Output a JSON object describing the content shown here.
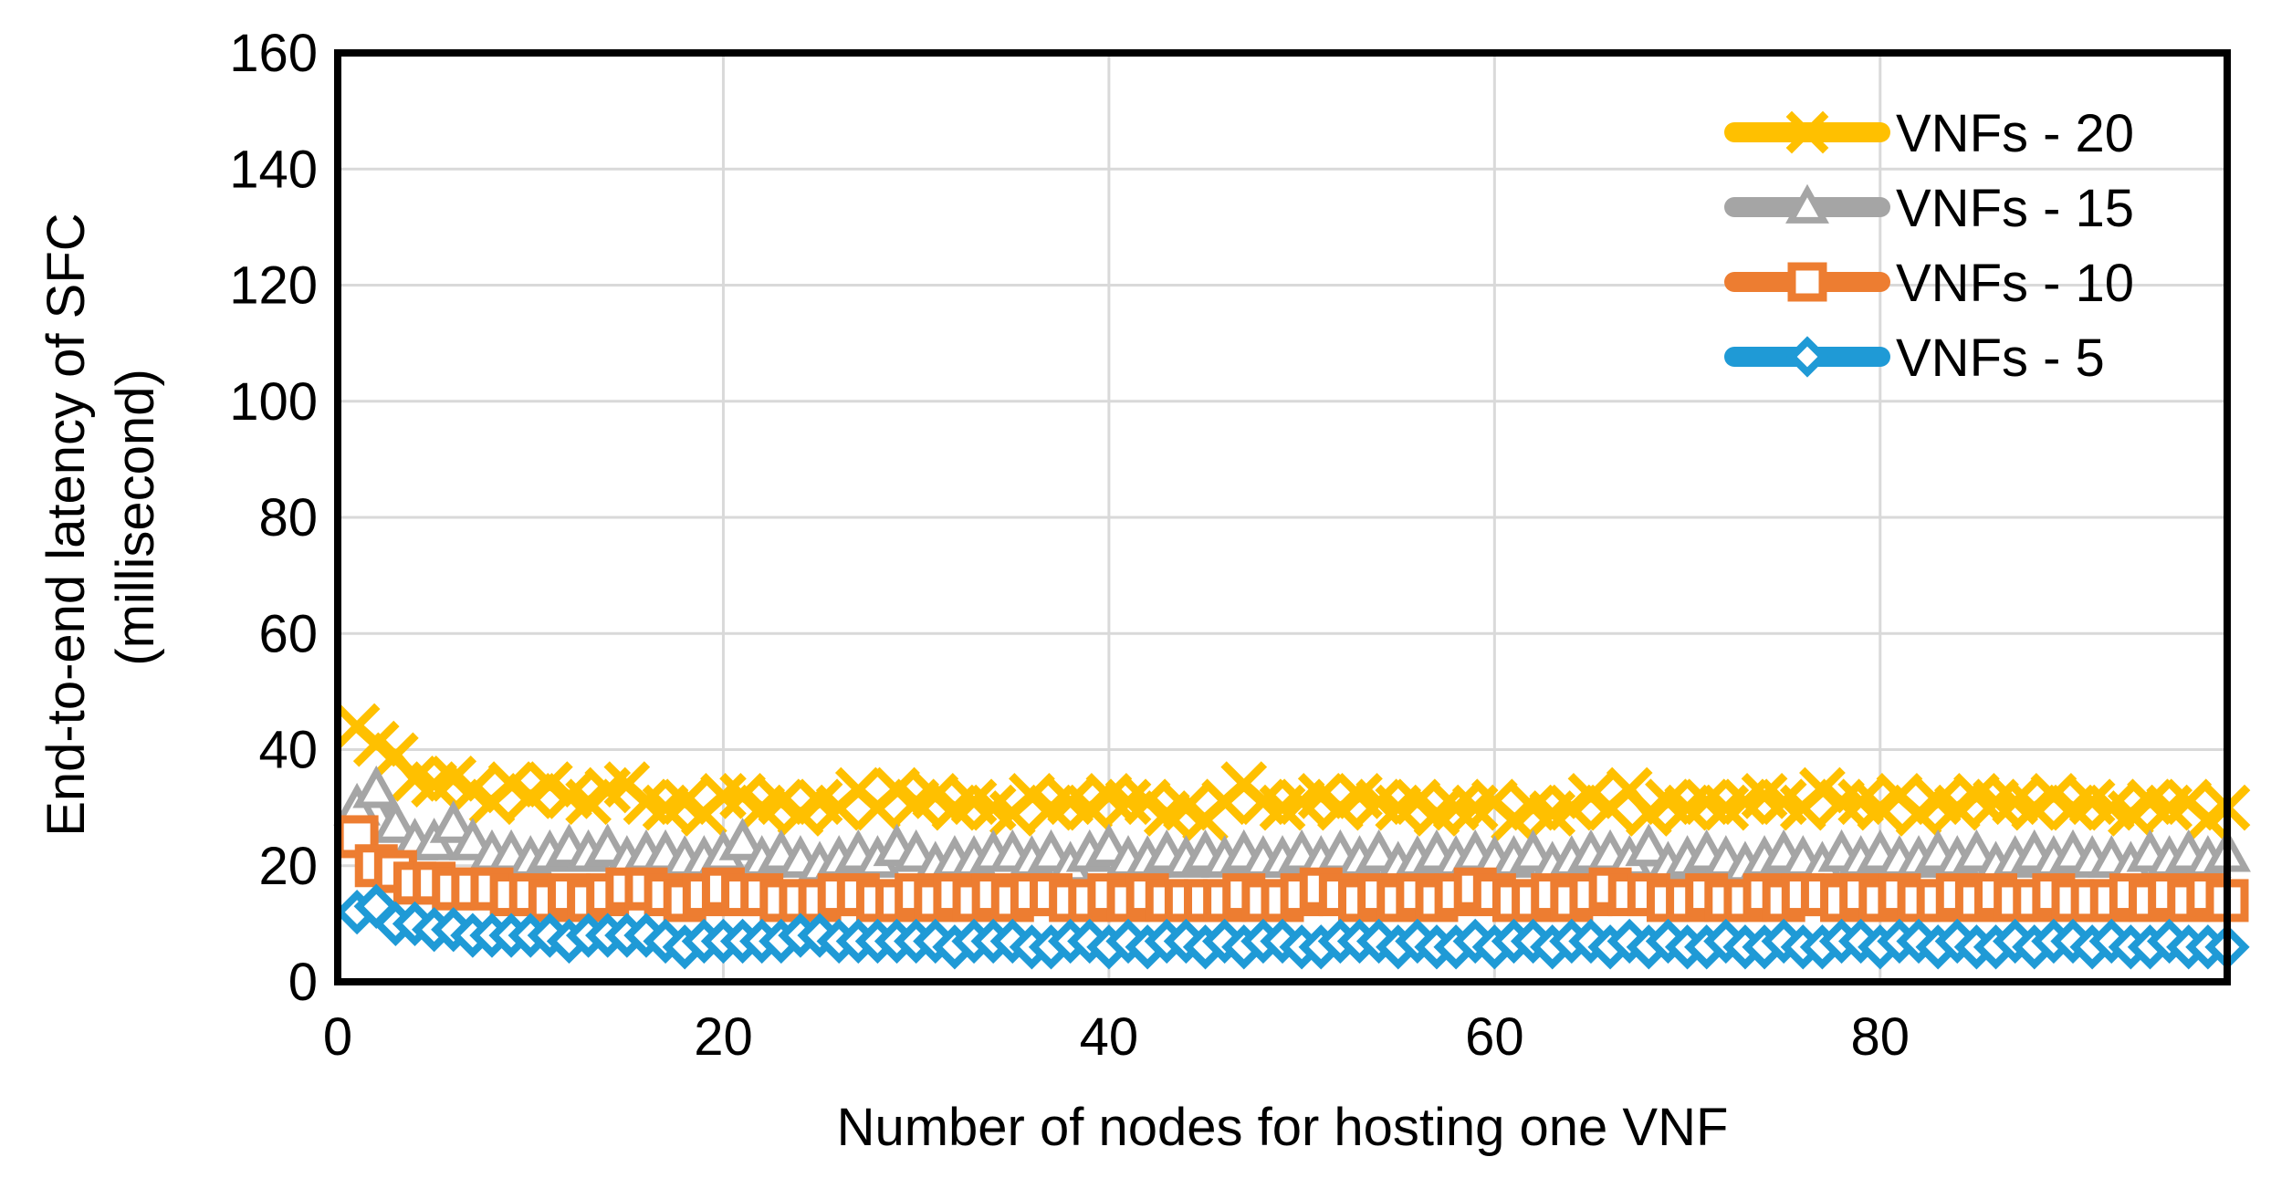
{
  "chart_data": {
    "type": "line",
    "title": "",
    "xlabel": "Number of nodes for hosting one VNF",
    "ylabel_lines": [
      "End-to-end latency of SFC",
      "(millisecond)"
    ],
    "xlim": [
      0,
      98
    ],
    "ylim": [
      0,
      160
    ],
    "x_ticks": [
      0,
      20,
      40,
      60,
      80
    ],
    "y_ticks": [
      0,
      20,
      40,
      60,
      80,
      100,
      120,
      140,
      160
    ],
    "grid": true,
    "legend_position": "top-right",
    "x": [
      1,
      2,
      3,
      4,
      5,
      6,
      7,
      8,
      9,
      10,
      11,
      12,
      13,
      14,
      15,
      16,
      17,
      18,
      19,
      20,
      21,
      22,
      23,
      24,
      25,
      26,
      27,
      28,
      29,
      30,
      31,
      32,
      33,
      34,
      35,
      36,
      37,
      38,
      39,
      40,
      41,
      42,
      43,
      44,
      45,
      46,
      47,
      48,
      49,
      50,
      51,
      52,
      53,
      54,
      55,
      56,
      57,
      58,
      59,
      60,
      61,
      62,
      63,
      64,
      65,
      66,
      67,
      68,
      69,
      70,
      71,
      72,
      73,
      74,
      75,
      76,
      77,
      78,
      79,
      80,
      81,
      82,
      83,
      84,
      85,
      86,
      87,
      88,
      89,
      90,
      91,
      92,
      93,
      94,
      95,
      96,
      97,
      98
    ],
    "series": [
      {
        "name": "VNFs - 20",
        "color": "#FFC000",
        "marker": "x",
        "values": [
          44,
          41,
          39,
          35,
          34,
          35,
          33,
          31,
          34,
          32,
          34,
          32,
          31,
          33,
          34,
          31,
          30,
          31,
          29,
          32,
          32,
          30,
          31,
          29,
          31,
          30,
          33,
          30,
          33,
          31,
          32,
          30,
          31,
          30,
          29,
          32,
          30,
          31,
          30,
          32,
          31,
          31,
          29,
          30,
          28,
          31,
          34,
          31,
          30,
          31,
          32,
          30,
          32,
          31,
          30,
          31,
          29,
          30,
          30,
          31,
          28,
          30,
          29,
          30,
          32,
          30,
          33,
          29,
          31,
          30,
          31,
          30,
          31,
          32,
          31,
          30,
          33,
          31,
          31,
          30,
          32,
          29,
          31,
          30,
          32,
          31,
          31,
          30,
          32,
          30,
          31,
          30,
          29,
          31,
          30,
          31,
          28,
          30
        ]
      },
      {
        "name": "VNFs - 15",
        "color": "#A5A5A5",
        "marker": "triangle",
        "values": [
          30,
          33,
          27,
          24,
          24,
          27,
          24,
          22,
          22,
          21,
          22,
          23,
          22,
          23,
          21,
          22,
          22,
          21,
          21,
          22,
          24,
          21,
          22,
          21,
          20,
          21,
          22,
          21,
          23,
          22,
          20,
          21,
          21,
          22,
          22,
          21,
          22,
          20,
          22,
          23,
          21,
          21,
          22,
          21,
          22,
          21,
          22,
          21,
          21,
          22,
          21,
          22,
          21,
          22,
          20,
          21,
          22,
          21,
          22,
          21,
          21,
          22,
          20,
          21,
          22,
          22,
          21,
          23,
          20,
          21,
          22,
          21,
          20,
          21,
          22,
          21,
          20,
          22,
          21,
          22,
          21,
          21,
          22,
          21,
          22,
          20,
          21,
          22,
          21,
          22,
          21,
          21,
          20,
          22,
          21,
          22,
          21,
          22
        ]
      },
      {
        "name": "VNFs - 10",
        "color": "#ED7D31",
        "marker": "square",
        "values": [
          25,
          20,
          19,
          17,
          17,
          16,
          16,
          16,
          15,
          15,
          14,
          15,
          14,
          15,
          16,
          16,
          15,
          14,
          15,
          16,
          15,
          15,
          14,
          14,
          14,
          15,
          15,
          14,
          14,
          15,
          14,
          15,
          14,
          15,
          14,
          15,
          15,
          14,
          14,
          15,
          14,
          15,
          14,
          14,
          14,
          14,
          15,
          14,
          14,
          15,
          16,
          15,
          14,
          15,
          14,
          15,
          14,
          15,
          16,
          15,
          14,
          14,
          15,
          14,
          15,
          16,
          15,
          15,
          14,
          14,
          15,
          14,
          14,
          15,
          14,
          15,
          15,
          14,
          15,
          14,
          15,
          14,
          14,
          15,
          14,
          15,
          14,
          14,
          15,
          14,
          14,
          14,
          15,
          14,
          15,
          14,
          15,
          14
        ]
      },
      {
        "name": "VNFs - 5",
        "color": "#1F9AD6",
        "marker": "diamond",
        "values": [
          12,
          13,
          10,
          10,
          9,
          9,
          8,
          8,
          8,
          8,
          8,
          7,
          8,
          8,
          8,
          8,
          7,
          6,
          7,
          7,
          7,
          7,
          7,
          8,
          8,
          7,
          7,
          7,
          7,
          7,
          7,
          6,
          7,
          7,
          7,
          6,
          6,
          7,
          7,
          6,
          7,
          6,
          7,
          7,
          6,
          7,
          6,
          7,
          7,
          6,
          6,
          7,
          7,
          7,
          6,
          7,
          6,
          6,
          7,
          6,
          7,
          7,
          6,
          7,
          7,
          6,
          7,
          6,
          7,
          6,
          6,
          7,
          6,
          6,
          7,
          6,
          6,
          7,
          7,
          6,
          7,
          7,
          6,
          7,
          6,
          6,
          7,
          6,
          7,
          7,
          6,
          7,
          6,
          6,
          7,
          6,
          6,
          6
        ]
      }
    ]
  }
}
